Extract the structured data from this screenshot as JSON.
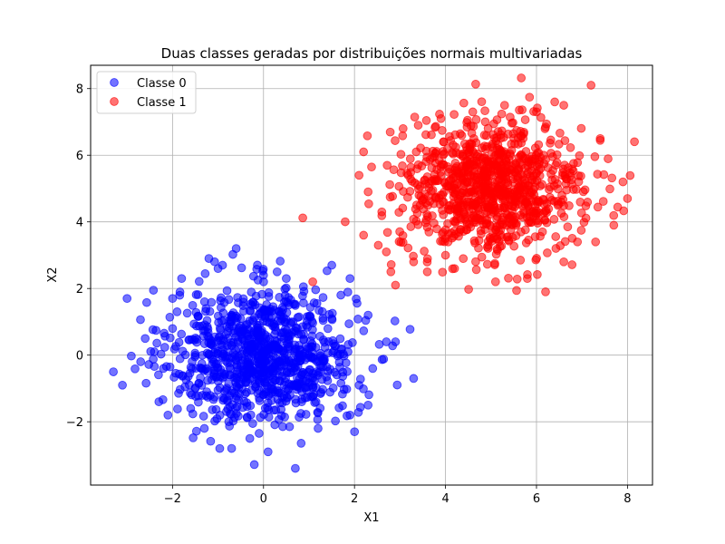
{
  "chart_data": {
    "type": "scatter",
    "title": "Duas classes geradas por distribuições normais multivariadas",
    "xlabel": "X1",
    "ylabel": "X2",
    "xlim": [
      -3.8,
      8.55
    ],
    "ylim": [
      -3.9,
      8.7
    ],
    "xticks": [
      -2,
      0,
      2,
      4,
      6,
      8
    ],
    "yticks": [
      -2,
      0,
      2,
      4,
      6,
      8
    ],
    "xtick_labels": [
      "−2",
      "0",
      "2",
      "4",
      "6",
      "8"
    ],
    "ytick_labels": [
      "−2",
      "0",
      "2",
      "4",
      "6",
      "8"
    ],
    "grid": true,
    "legend_position": "upper-left",
    "alpha": 0.55,
    "series": [
      {
        "name": "Classe 0",
        "color": "#0000ff",
        "distribution": "normal",
        "mean": [
          0,
          0
        ],
        "std": [
          1,
          1
        ],
        "n": 1000,
        "points": [
          [
            -3.3,
            -0.5
          ],
          [
            -3.1,
            -0.9
          ],
          [
            -3.0,
            1.7
          ],
          [
            -2.7,
            -0.2
          ],
          [
            -2.6,
            0.5
          ],
          [
            -2.4,
            0.1
          ],
          [
            -2.3,
            -1.4
          ],
          [
            -2.1,
            -1.8
          ],
          [
            -2.0,
            1.7
          ],
          [
            -1.9,
            1.3
          ],
          [
            -1.8,
            2.3
          ],
          [
            -1.6,
            -1.6
          ],
          [
            -1.2,
            2.9
          ],
          [
            -1.0,
            2.6
          ],
          [
            -0.9,
            2.7
          ],
          [
            -0.6,
            3.2
          ],
          [
            -0.7,
            -2.8
          ],
          [
            -0.3,
            -2.5
          ],
          [
            0.1,
            -2.9
          ],
          [
            0.0,
            2.4
          ],
          [
            0.3,
            2.5
          ],
          [
            0.7,
            -3.4
          ],
          [
            0.5,
            2.3
          ],
          [
            1.2,
            -2.2
          ],
          [
            1.5,
            2.7
          ],
          [
            1.9,
            2.3
          ],
          [
            2.0,
            -2.3
          ],
          [
            2.3,
            1.2
          ],
          [
            2.4,
            -0.4
          ],
          [
            2.7,
            0.4
          ],
          [
            2.9,
            0.4
          ],
          [
            3.3,
            -0.7
          ],
          [
            2.3,
            -1.5
          ],
          [
            1.9,
            -1.8
          ],
          [
            -1.3,
            -2.2
          ],
          [
            -2.2,
            -0.4
          ],
          [
            -2.0,
            0.8
          ],
          [
            1.7,
            1.8
          ],
          [
            2.1,
            -0.9
          ],
          [
            -1.5,
            -1.0
          ]
        ]
      },
      {
        "name": "Classe 1",
        "color": "#ff0000",
        "distribution": "normal",
        "mean": [
          5,
          5
        ],
        "std": [
          1,
          1
        ],
        "n": 1000,
        "points": [
          [
            2.2,
            6.1
          ],
          [
            2.2,
            3.6
          ],
          [
            2.6,
            4.3
          ],
          [
            2.7,
            3.1
          ],
          [
            2.8,
            2.5
          ],
          [
            2.9,
            2.1
          ],
          [
            3.3,
            2.8
          ],
          [
            3.4,
            6.9
          ],
          [
            3.6,
            2.5
          ],
          [
            3.9,
            7.1
          ],
          [
            4.2,
            2.6
          ],
          [
            4.6,
            7.3
          ],
          [
            5.1,
            2.2
          ],
          [
            5.3,
            7.5
          ],
          [
            5.8,
            2.3
          ],
          [
            6.0,
            7.3
          ],
          [
            6.2,
            1.9
          ],
          [
            6.4,
            7.6
          ],
          [
            6.6,
            7.5
          ],
          [
            7.2,
            8.1
          ],
          [
            7.4,
            6.5
          ],
          [
            7.7,
            3.9
          ],
          [
            7.9,
            5.2
          ],
          [
            8.0,
            4.7
          ],
          [
            7.3,
            3.4
          ],
          [
            2.1,
            5.4
          ],
          [
            2.3,
            4.9
          ],
          [
            6.6,
            2.8
          ],
          [
            6.9,
            3.4
          ],
          [
            4.0,
            3.0
          ]
        ]
      }
    ]
  }
}
